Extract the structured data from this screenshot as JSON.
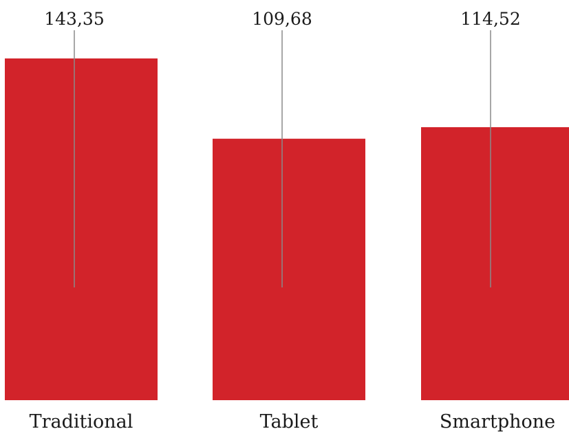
{
  "chart_data": {
    "type": "bar",
    "categories": [
      "Traditional",
      "Tablet",
      "Smartphone"
    ],
    "values": [
      143.35,
      109.68,
      114.52
    ],
    "value_labels": [
      "143,35",
      "109,68",
      "114,52"
    ],
    "ylim": [
      0,
      143.35
    ],
    "grid": false,
    "legend": "none",
    "colors": {
      "bar": "#d2232a",
      "leader_line": "#8a8a8a"
    }
  }
}
